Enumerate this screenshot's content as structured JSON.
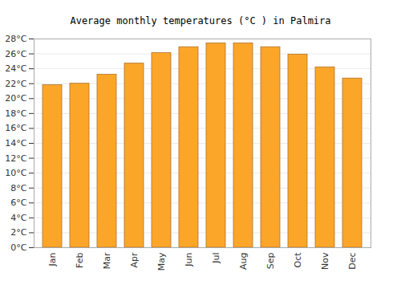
{
  "chart_data": {
    "type": "bar",
    "title": "Average monthly temperatures (°C ) in Palmira",
    "categories": [
      "Jan",
      "Feb",
      "Mar",
      "Apr",
      "May",
      "Jun",
      "Jul",
      "Aug",
      "Sep",
      "Oct",
      "Nov",
      "Dec"
    ],
    "values": [
      21.8,
      22.0,
      23.2,
      24.7,
      26.1,
      26.9,
      27.4,
      27.4,
      26.9,
      25.9,
      24.2,
      22.7
    ],
    "color": "#fca629",
    "ylim": [
      0,
      28
    ],
    "yticks": [
      {
        "value": 0,
        "label": "0°C"
      },
      {
        "value": 2,
        "label": "2°C"
      },
      {
        "value": 4,
        "label": "4°C"
      },
      {
        "value": 6,
        "label": "6°C"
      },
      {
        "value": 8,
        "label": "8°C"
      },
      {
        "value": 10,
        "label": "10°C"
      },
      {
        "value": 12,
        "label": "12°C"
      },
      {
        "value": 14,
        "label": "14°C"
      },
      {
        "value": 16,
        "label": "16°C"
      },
      {
        "value": 18,
        "label": "18°C"
      },
      {
        "value": 20,
        "label": "20°C"
      },
      {
        "value": 22,
        "label": "22°C"
      },
      {
        "value": 24,
        "label": "24°C"
      },
      {
        "value": 26,
        "label": "26°C"
      },
      {
        "value": 28,
        "label": "28°C"
      }
    ],
    "grid": true
  }
}
